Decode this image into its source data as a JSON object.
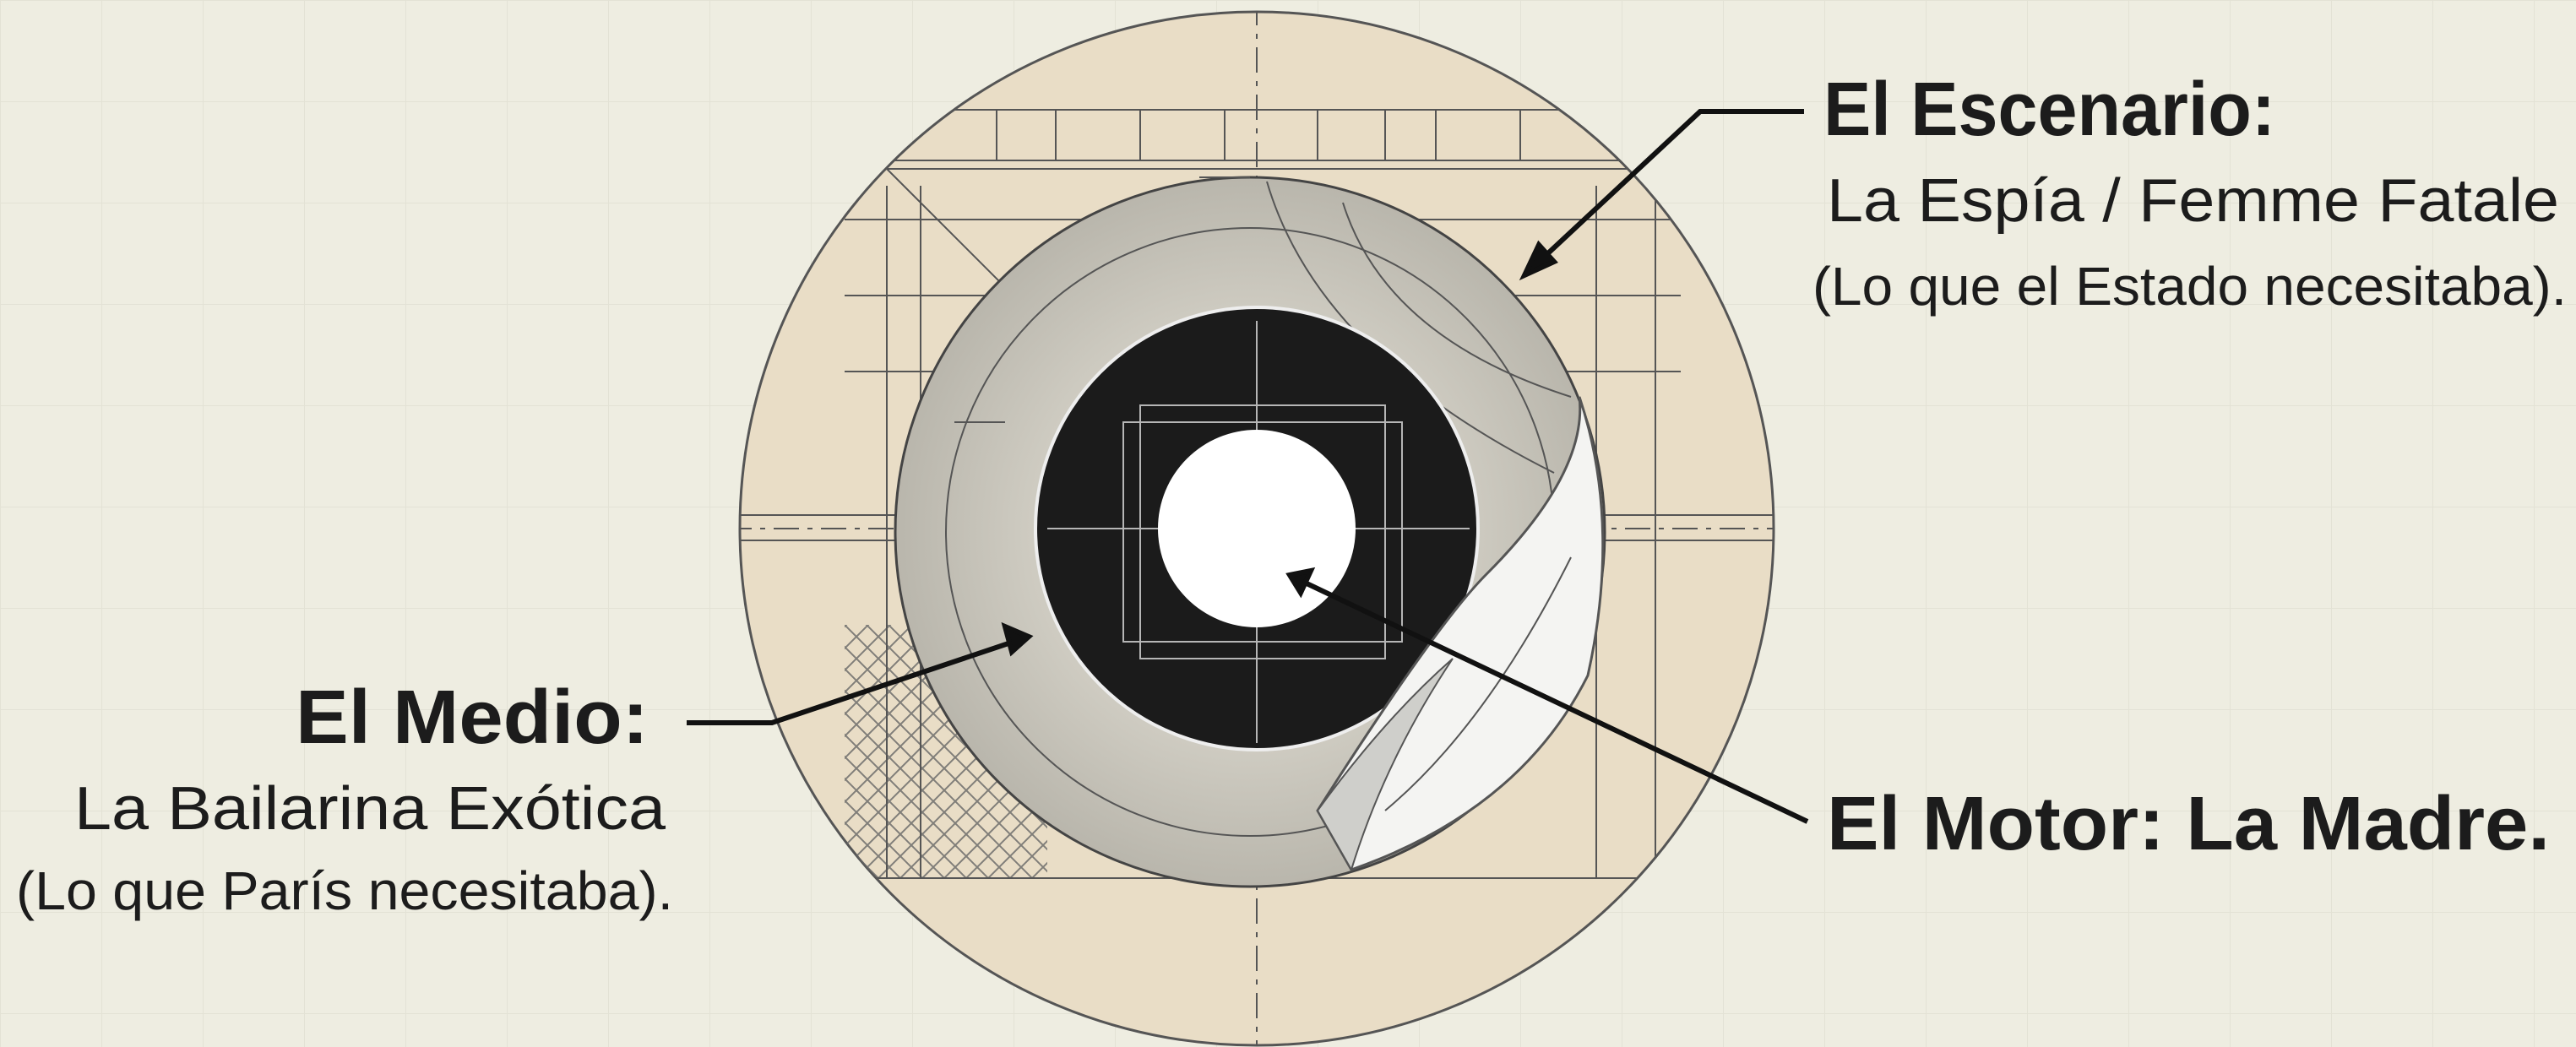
{
  "labels": [
    {
      "title": "El Escenario:",
      "lines": [
        "La Espía / Femme Fatale",
        "(Lo que el Estado necesitaba)."
      ]
    },
    {
      "title": "El Medio:",
      "lines": [
        "La Bailarina Exótica",
        "(Lo que París necesitaba)."
      ]
    },
    {
      "title": "El Motor: La Madre."
    }
  ]
}
